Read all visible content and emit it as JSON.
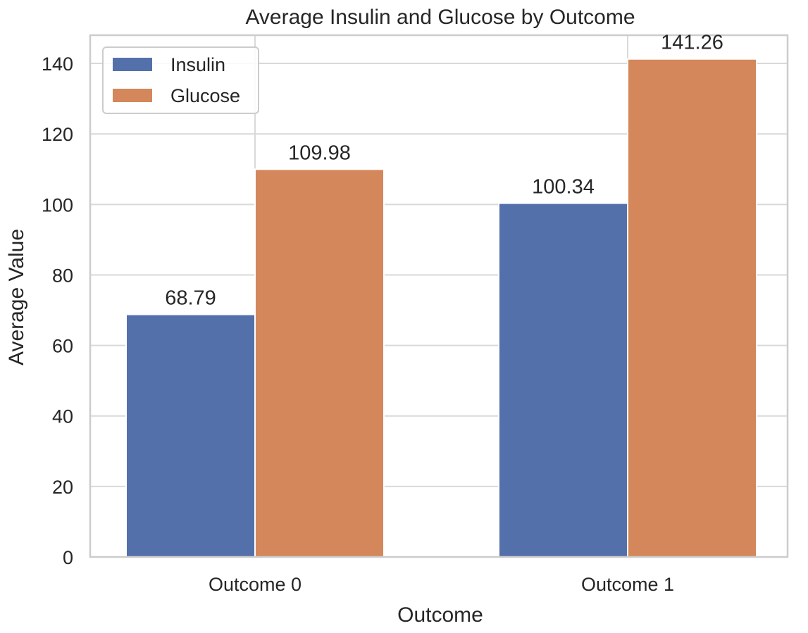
{
  "chart_data": {
    "type": "bar",
    "title": "Average Insulin and Glucose by Outcome",
    "xlabel": "Outcome",
    "ylabel": "Average Value",
    "categories": [
      "Outcome 0",
      "Outcome 1"
    ],
    "series": [
      {
        "name": "Insulin",
        "values": [
          68.79,
          100.34
        ],
        "value_labels": [
          "68.79",
          "100.34"
        ],
        "color": "#5470ab"
      },
      {
        "name": "Glucose",
        "values": [
          109.98,
          141.26
        ],
        "value_labels": [
          "109.98",
          "141.26"
        ],
        "color": "#d4875b"
      }
    ],
    "ylim": [
      0,
      148
    ],
    "yticks": [
      0,
      20,
      40,
      60,
      80,
      100,
      120,
      140
    ],
    "ytick_labels": [
      "0",
      "20",
      "40",
      "60",
      "80",
      "100",
      "120",
      "140"
    ],
    "grid": true,
    "legend_position": "top-left"
  },
  "colors": {
    "background": "#ffffff",
    "grid": "#d9d9d9",
    "frame": "#cccccc",
    "text": "#262626"
  }
}
